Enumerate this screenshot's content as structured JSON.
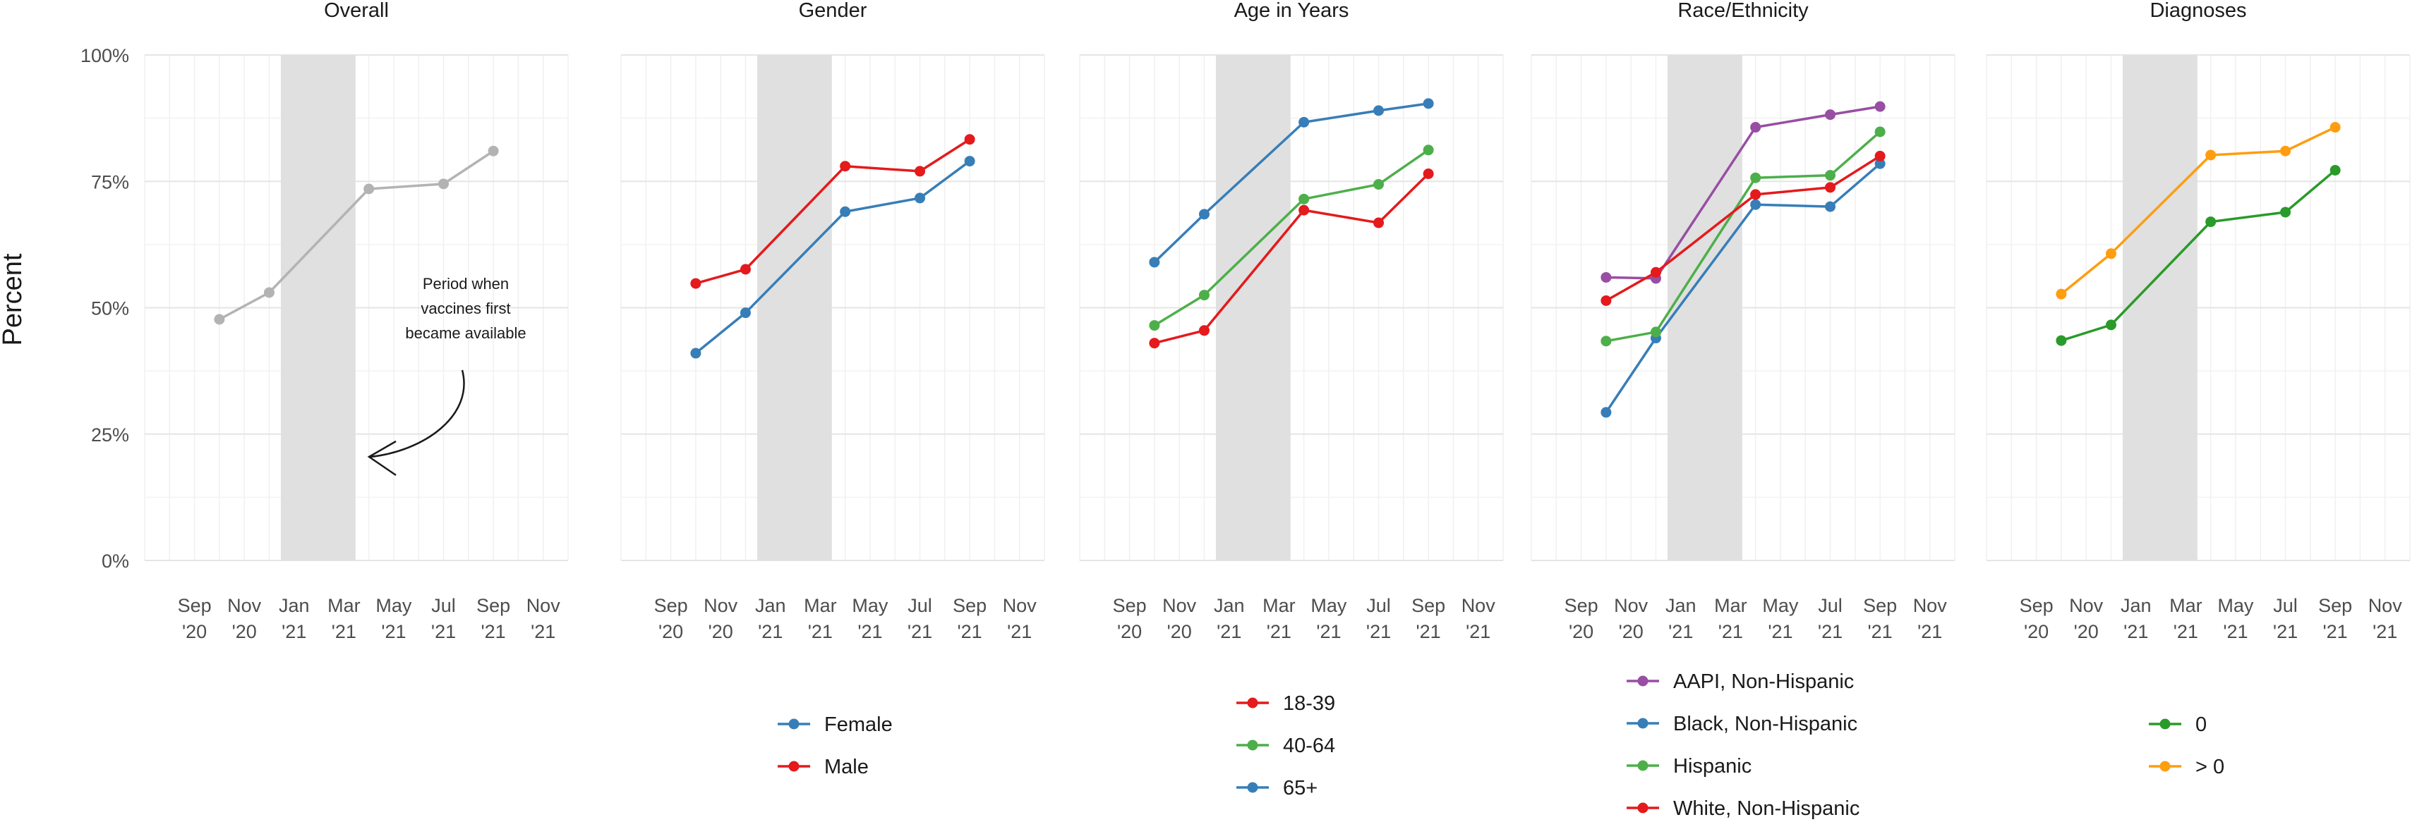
{
  "figure": {
    "ylabel": "Percent",
    "annotation": [
      "Period when",
      "vaccines first",
      "became available"
    ]
  },
  "chart_data": [
    {
      "type": "line",
      "title": "Overall",
      "xlabel": "",
      "ylabel": "Percent",
      "ylim": [
        0,
        100
      ],
      "y_ticks": [
        "0%",
        "25%",
        "50%",
        "75%",
        "100%"
      ],
      "x_ticks": [
        "Sep '20",
        "Nov '20",
        "Jan '21",
        "Mar '21",
        "May '21",
        "Jul '21",
        "Sep '21",
        "Nov '21"
      ],
      "x": [
        "2020-10",
        "2020-12",
        "2021-04",
        "2021-07",
        "2021-09"
      ],
      "shaded_period": [
        "2020-12-15",
        "2021-03-15"
      ],
      "grid": true,
      "series": [
        {
          "values": [
            47.7,
            53,
            73.5,
            74.5,
            81
          ],
          "color": "#b3b3b3"
        }
      ]
    },
    {
      "type": "line",
      "title": "Gender",
      "xlabel": "",
      "ylabel": "Percent",
      "ylim": [
        0,
        100
      ],
      "y_ticks": [
        "0%",
        "25%",
        "50%",
        "75%",
        "100%"
      ],
      "x_ticks": [
        "Sep '20",
        "Nov '20",
        "Jan '21",
        "Mar '21",
        "May '21",
        "Jul '21",
        "Sep '21",
        "Nov '21"
      ],
      "x": [
        "2020-10",
        "2020-12",
        "2021-04",
        "2021-07",
        "2021-09"
      ],
      "shaded_period": [
        "2020-12-15",
        "2021-03-15"
      ],
      "grid": true,
      "legend_position": "bottom",
      "series": [
        {
          "name": "Female",
          "values": [
            41,
            49,
            69,
            71.7,
            79
          ],
          "color": "#377eb8"
        },
        {
          "name": "Male",
          "values": [
            54.8,
            57.6,
            78,
            77,
            83.3
          ],
          "color": "#e41a1c"
        }
      ]
    },
    {
      "type": "line",
      "title": "Age in Years",
      "xlabel": "",
      "ylabel": "Percent",
      "ylim": [
        0,
        100
      ],
      "y_ticks": [
        "0%",
        "25%",
        "50%",
        "75%",
        "100%"
      ],
      "x_ticks": [
        "Sep '20",
        "Nov '20",
        "Jan '21",
        "Mar '21",
        "May '21",
        "Jul '21",
        "Sep '21",
        "Nov '21"
      ],
      "x": [
        "2020-10",
        "2020-12",
        "2021-04",
        "2021-07",
        "2021-09"
      ],
      "shaded_period": [
        "2020-12-15",
        "2021-03-15"
      ],
      "grid": true,
      "legend_position": "bottom",
      "series": [
        {
          "name": "18-39",
          "values": [
            43,
            45.5,
            69.3,
            66.8,
            76.5
          ],
          "color": "#e41a1c"
        },
        {
          "name": "40-64",
          "values": [
            46.5,
            52.5,
            71.5,
            74.4,
            81.2
          ],
          "color": "#4daf4a"
        },
        {
          "name": "65+",
          "values": [
            59,
            68.5,
            86.7,
            89,
            90.4
          ],
          "color": "#377eb8"
        }
      ]
    },
    {
      "type": "line",
      "title": "Race/Ethnicity",
      "xlabel": "",
      "ylabel": "Percent",
      "ylim": [
        0,
        100
      ],
      "y_ticks": [
        "0%",
        "25%",
        "50%",
        "75%",
        "100%"
      ],
      "x_ticks": [
        "Sep '20",
        "Nov '20",
        "Jan '21",
        "Mar '21",
        "May '21",
        "Jul '21",
        "Sep '21",
        "Nov '21"
      ],
      "x": [
        "2020-10",
        "2020-12",
        "2021-04",
        "2021-07",
        "2021-09"
      ],
      "shaded_period": [
        "2020-12-15",
        "2021-03-15"
      ],
      "grid": true,
      "legend_position": "bottom",
      "series": [
        {
          "name": "AAPI, Non-Hispanic",
          "values": [
            56,
            55.8,
            85.7,
            88.2,
            89.8
          ],
          "color": "#984ea3"
        },
        {
          "name": "Black, Non-Hispanic",
          "values": [
            29.3,
            44,
            70.4,
            70,
            78.5
          ],
          "color": "#377eb8"
        },
        {
          "name": "Hispanic",
          "values": [
            43.4,
            45.2,
            75.7,
            76.2,
            84.8
          ],
          "color": "#4daf4a"
        },
        {
          "name": "White, Non-Hispanic",
          "values": [
            51.4,
            57,
            72.4,
            73.8,
            80
          ],
          "color": "#e41a1c"
        }
      ]
    },
    {
      "type": "line",
      "title": "Diagnoses",
      "xlabel": "",
      "ylabel": "Percent",
      "ylim": [
        0,
        100
      ],
      "y_ticks": [
        "0%",
        "25%",
        "50%",
        "75%",
        "100%"
      ],
      "x_ticks": [
        "Sep '20",
        "Nov '20",
        "Jan '21",
        "Mar '21",
        "May '21",
        "Jul '21",
        "Sep '21",
        "Nov '21"
      ],
      "x": [
        "2020-10",
        "2020-12",
        "2021-04",
        "2021-07",
        "2021-09"
      ],
      "shaded_period": [
        "2020-12-15",
        "2021-03-15"
      ],
      "grid": true,
      "legend_position": "bottom",
      "series": [
        {
          "name": "0",
          "values": [
            43.5,
            46.6,
            67,
            68.9,
            77.2
          ],
          "color": "#2a9a2a"
        },
        {
          "name": "> 0",
          "values": [
            52.7,
            60.7,
            80.2,
            81,
            85.7
          ],
          "color": "#ff9d10"
        }
      ]
    }
  ]
}
